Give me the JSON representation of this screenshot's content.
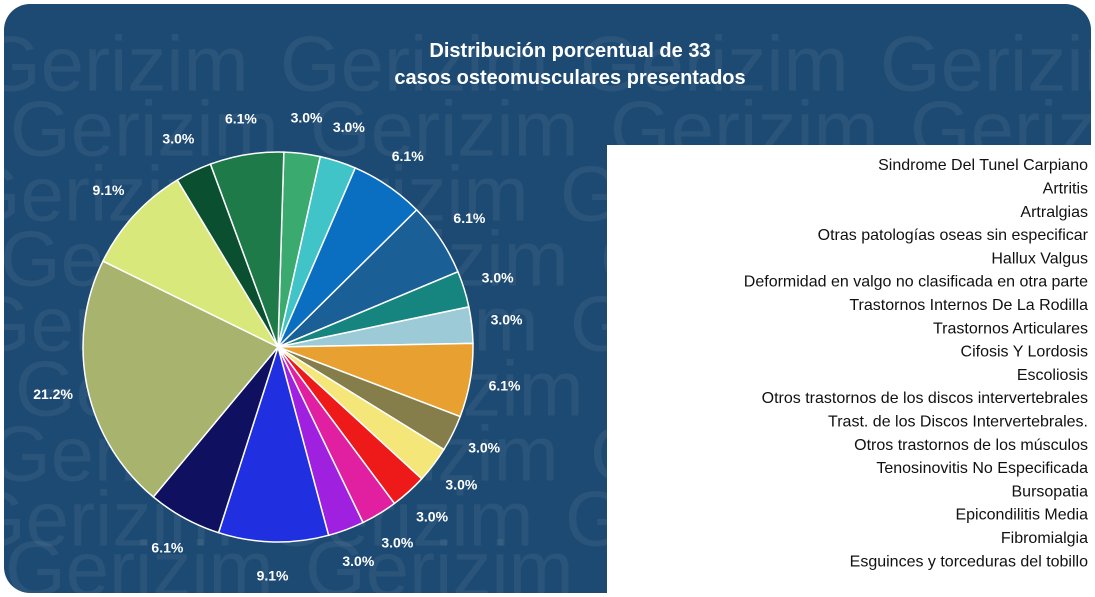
{
  "chart_data": {
    "type": "pie",
    "title": [
      "Distribución porcentual de 33",
      "casos osteomusculares presentados"
    ],
    "watermark": "Gerizim",
    "categories": [
      "Sindrome Del Tunel Carpiano",
      "Artritis",
      "Artralgias",
      "Otras patologías oseas sin especificar",
      "Hallux Valgus",
      "Deformidad en valgo no clasificada en otra parte",
      "Trastornos Internos De La Rodilla",
      "Trastornos Articulares",
      "Cifosis Y Lordosis",
      "Escoliosis",
      "Otros trastornos de los discos intervertebrales",
      "Trast. de los Discos Intervertebrales.",
      "Otros trastornos de los músculos",
      "Tenosinovitis No Especificada",
      "Bursopatia",
      "Epicondilitis Media",
      "Fibromialgia",
      "Esguinces y torceduras del tobillo"
    ],
    "values": [
      3.0,
      3.0,
      6.1,
      6.1,
      3.0,
      3.0,
      6.1,
      3.0,
      3.0,
      3.0,
      3.0,
      3.0,
      9.1,
      6.1,
      21.2,
      9.1,
      3.0,
      6.1
    ],
    "value_labels": [
      "3.0%",
      "3.0%",
      "6.1%",
      "6.1%",
      "3.0%",
      "3.0%",
      "6.1%",
      "3.0%",
      "3.0%",
      "3.0%",
      "3.0%",
      "3.0%",
      "9.1%",
      "6.1%",
      "21.2%",
      "9.1%",
      "3.0%",
      "6.1%"
    ],
    "colors": [
      "#3aaa6e",
      "#40c4c8",
      "#0a6fc0",
      "#1a5f95",
      "#17857f",
      "#9ccad6",
      "#e8a030",
      "#857d4a",
      "#f5e67a",
      "#ee1a1a",
      "#e020a0",
      "#a020e0",
      "#2030e0",
      "#101060",
      "#a8b46e",
      "#d8e87a",
      "#0a5030",
      "#1e7a48"
    ],
    "legend": "right"
  }
}
